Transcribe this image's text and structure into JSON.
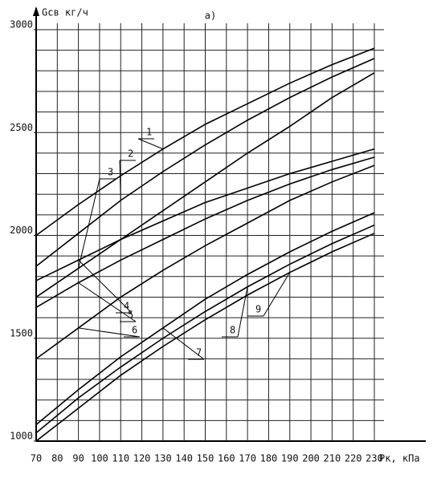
{
  "chart_data": {
    "type": "line",
    "title": "а)",
    "y_label": "Gсв кг/ч",
    "x_label": "Pк, кПа",
    "x": [
      70,
      90,
      110,
      130,
      150,
      170,
      190,
      210,
      230
    ],
    "series": [
      {
        "name": "1",
        "color": "#000000",
        "values": [
          2000,
          2150,
          2290,
          2420,
          2540,
          2640,
          2740,
          2830,
          2910
        ]
      },
      {
        "name": "2",
        "color": "#000000",
        "values": [
          1850,
          2010,
          2170,
          2310,
          2440,
          2560,
          2670,
          2770,
          2860
        ]
      },
      {
        "name": "3",
        "color": "#000000",
        "values": [
          1700,
          1840,
          1980,
          2120,
          2260,
          2400,
          2530,
          2670,
          2790
        ]
      },
      {
        "name": "4",
        "color": "#000000",
        "values": [
          1780,
          1880,
          1980,
          2070,
          2160,
          2230,
          2300,
          2360,
          2420
        ]
      },
      {
        "name": "5",
        "color": "#000000",
        "values": [
          1650,
          1770,
          1880,
          1980,
          2080,
          2170,
          2250,
          2320,
          2380
        ]
      },
      {
        "name": "6",
        "color": "#000000",
        "values": [
          1400,
          1550,
          1700,
          1830,
          1950,
          2060,
          2170,
          2260,
          2340
        ]
      },
      {
        "name": "7",
        "color": "#000000",
        "values": [
          1080,
          1250,
          1410,
          1550,
          1690,
          1810,
          1920,
          2020,
          2110
        ]
      },
      {
        "name": "8",
        "color": "#000000",
        "values": [
          1040,
          1210,
          1360,
          1500,
          1630,
          1750,
          1860,
          1960,
          2050
        ]
      },
      {
        "name": "9",
        "color": "#000000",
        "values": [
          1000,
          1160,
          1320,
          1460,
          1590,
          1710,
          1820,
          1920,
          2010
        ]
      }
    ],
    "xlim": [
      70,
      230
    ],
    "xticks": [
      70,
      80,
      90,
      100,
      110,
      120,
      130,
      140,
      150,
      160,
      170,
      180,
      190,
      200,
      210,
      220,
      230
    ],
    "ylim": [
      1000,
      3000
    ],
    "yticks": [
      1000,
      1500,
      2000,
      2500,
      3000
    ],
    "ygrid_step": 100,
    "grid": true
  }
}
